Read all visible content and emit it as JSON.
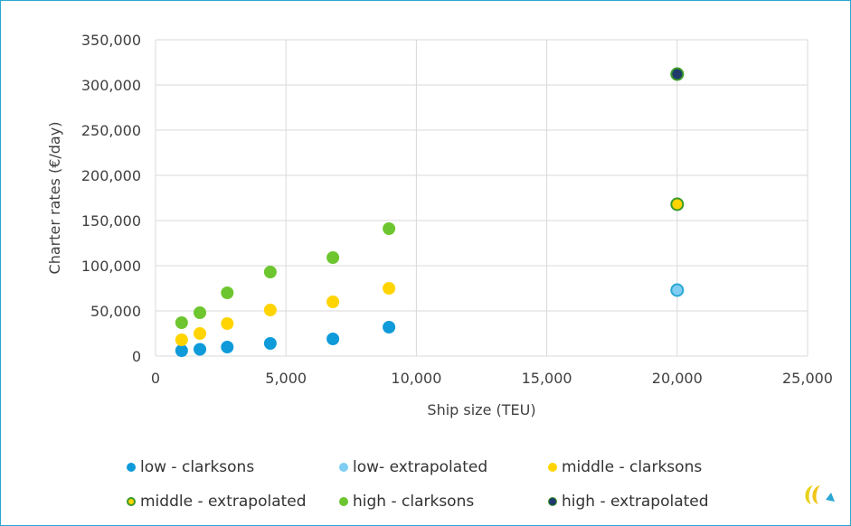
{
  "chart_data": {
    "type": "scatter",
    "title": "",
    "xlabel": "Ship size (TEU)",
    "ylabel": "Charter rates (€/day)",
    "xlim": [
      0,
      25000
    ],
    "ylim": [
      0,
      350000
    ],
    "x_ticks": [
      0,
      5000,
      10000,
      15000,
      20000,
      25000
    ],
    "y_ticks": [
      0,
      50000,
      100000,
      150000,
      200000,
      250000,
      300000,
      350000
    ],
    "x_tick_labels": [
      "0",
      "5,000",
      "10,000",
      "15,000",
      "20,000",
      "25,000"
    ],
    "y_tick_labels": [
      "0",
      "50,000",
      "100,000",
      "150,000",
      "200,000",
      "250,000",
      "300,000",
      "350,000"
    ],
    "grid": true,
    "legend_position": "bottom",
    "series": [
      {
        "name": "low - clarksons",
        "color": "#0f9ad9",
        "edge": "#0f9ad9",
        "points": [
          [
            1000,
            6000
          ],
          [
            1700,
            7500
          ],
          [
            2750,
            10000
          ],
          [
            4400,
            14000
          ],
          [
            6800,
            19000
          ],
          [
            8950,
            32000
          ]
        ]
      },
      {
        "name": "low- extrapolated",
        "color": "#7fcdf2",
        "edge": "#2aa7d3",
        "points": [
          [
            20000,
            73000
          ]
        ]
      },
      {
        "name": "middle - clarksons",
        "color": "#ffd400",
        "edge": "#ffd400",
        "points": [
          [
            1000,
            18000
          ],
          [
            1700,
            25000
          ],
          [
            2750,
            36000
          ],
          [
            4400,
            51000
          ],
          [
            6800,
            60000
          ],
          [
            8950,
            75000
          ]
        ]
      },
      {
        "name": "middle - extrapolated",
        "color": "#ffd400",
        "edge": "#3a9a2a",
        "points": [
          [
            20000,
            168000
          ]
        ]
      },
      {
        "name": "high - clarksons",
        "color": "#6dc62f",
        "edge": "#6dc62f",
        "points": [
          [
            1000,
            37000
          ],
          [
            1700,
            48000
          ],
          [
            2750,
            70000
          ],
          [
            4400,
            93000
          ],
          [
            6800,
            109000
          ],
          [
            8950,
            141000
          ]
        ]
      },
      {
        "name": "high - extrapolated",
        "color": "#1f3a6b",
        "edge": "#3a9a2a",
        "points": [
          [
            20000,
            312000
          ]
        ]
      }
    ]
  }
}
